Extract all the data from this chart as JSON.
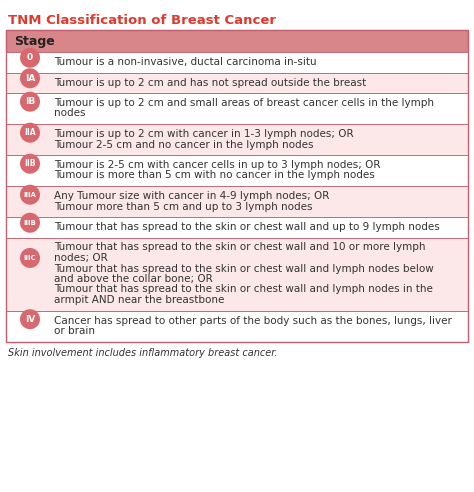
{
  "title": "TNM Classification of Breast Cancer",
  "title_color": "#e0392d",
  "title_fontsize": 9.5,
  "header": "Stage",
  "header_bg": "#d9868a",
  "header_fontsize": 9,
  "table_border_color": "#c06070",
  "bg_color": "#ffffff",
  "badge_bg": "#d9686e",
  "badge_text_color": "#ffffff",
  "text_color": "#333333",
  "footer_text": "Skin involvement includes inflammatory breast cancer.",
  "footer_fontsize": 7,
  "text_fontsize": 7.5,
  "rows": [
    {
      "stage": "0",
      "text": "Tumour is a non-invasive, ductal carcinoma in-situ",
      "bg": "#ffffff",
      "n_lines": 1
    },
    {
      "stage": "IA",
      "text": "Tumour is up to 2 cm and has not spread outside the breast",
      "bg": "#fce8e8",
      "n_lines": 1
    },
    {
      "stage": "IB",
      "text": "Tumour is up to 2 cm and small areas of breast cancer cells in the lymph\nnodes",
      "bg": "#ffffff",
      "n_lines": 2
    },
    {
      "stage": "IIA",
      "text": "Tumour is up to 2 cm with cancer in 1-3 lymph nodes; OR\nTumour 2-5 cm and no cancer in the lymph nodes",
      "bg": "#fce8e8",
      "n_lines": 2
    },
    {
      "stage": "IIB",
      "text": "Tumour is 2-5 cm with cancer cells in up to 3 lymph nodes; OR\nTumour is more than 5 cm with no cancer in the lymph nodes",
      "bg": "#ffffff",
      "n_lines": 2
    },
    {
      "stage": "IIIA",
      "text": "Any Tumour size with cancer in 4-9 lymph nodes; OR\nTumour more than 5 cm and up to 3 lymph nodes",
      "bg": "#fce8e8",
      "n_lines": 2
    },
    {
      "stage": "IIIB",
      "text": "Tumour that has spread to the skin or chest wall and up to 9 lymph nodes",
      "bg": "#ffffff",
      "n_lines": 1
    },
    {
      "stage": "IIIC",
      "text": "Tumour that has spread to the skin or chest wall and 10 or more lymph\nnodes; OR\nTumour that has spread to the skin or chest wall and lymph nodes below\nand above the collar bone; OR\nTumour that has spread to the skin or chest wall and lymph nodes in the\narmpit AND near the breastbone",
      "bg": "#fce8e8",
      "n_lines": 6
    },
    {
      "stage": "IV",
      "text": "Cancer has spread to other parts of the body such as the bones, lungs, liver\nor brain",
      "bg": "#ffffff",
      "n_lines": 2
    }
  ]
}
